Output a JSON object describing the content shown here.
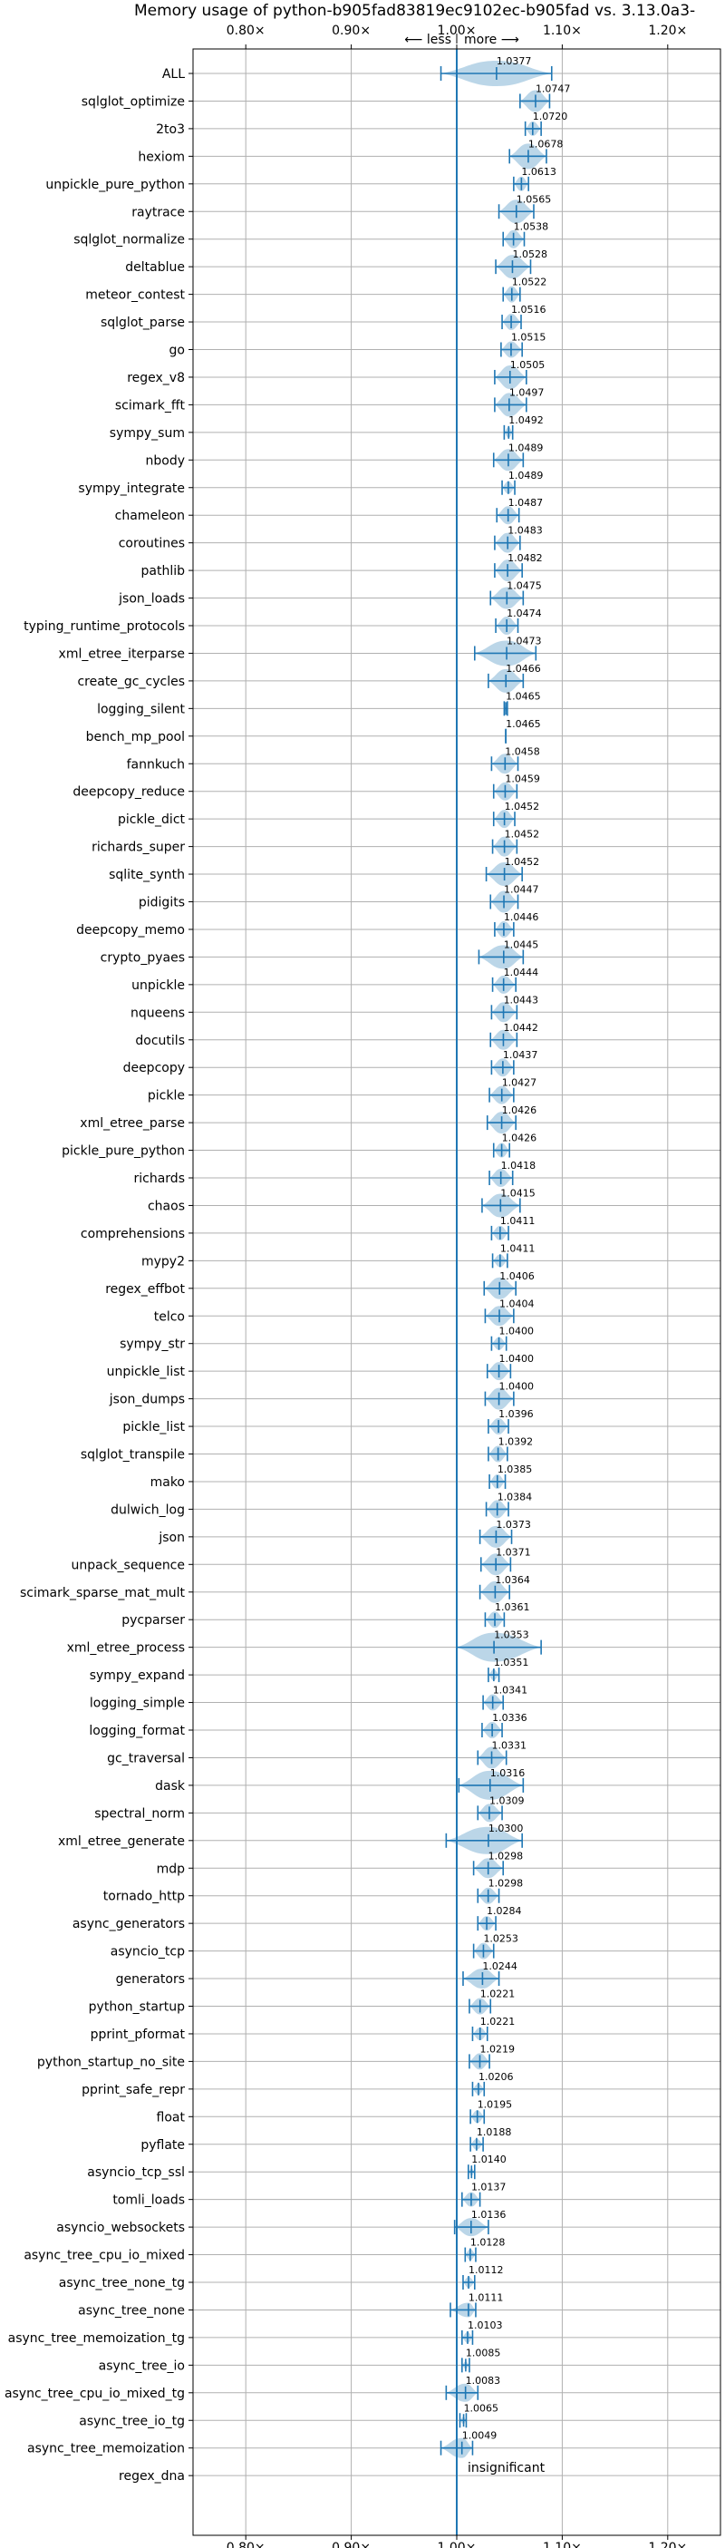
{
  "chart_data": {
    "type": "violin",
    "title": "Memory usage of python-b905fad83819ec9102ec-b905fad vs. 3.13.0a3-",
    "direction_labels": {
      "less": "⟵ less",
      "more": "more ⟶"
    },
    "xlim": [
      0.75,
      1.25
    ],
    "xticks": [
      0.8,
      0.9,
      1.0,
      1.1,
      1.2
    ],
    "xtick_labels": [
      "0.80×",
      "0.90×",
      "1.00×",
      "1.10×",
      "1.20×"
    ],
    "baseline": 1.0,
    "grid": true,
    "insignificant_label": "insignificant",
    "benchmarks": [
      {
        "name": "ALL",
        "label": "1.0377",
        "center": 1.0377,
        "min": 0.985,
        "max": 1.09,
        "halfwidth": 14
      },
      {
        "name": "sqlglot_optimize",
        "label": "1.0747",
        "center": 1.0747,
        "min": 1.06,
        "max": 1.088,
        "halfwidth": 12
      },
      {
        "name": "2to3",
        "label": "1.0720",
        "center": 1.072,
        "min": 1.065,
        "max": 1.08,
        "halfwidth": 8
      },
      {
        "name": "hexiom",
        "label": "1.0678",
        "center": 1.0678,
        "min": 1.05,
        "max": 1.085,
        "halfwidth": 14
      },
      {
        "name": "unpickle_pure_python",
        "label": "1.0613",
        "center": 1.0613,
        "min": 1.054,
        "max": 1.068,
        "halfwidth": 8
      },
      {
        "name": "raytrace",
        "label": "1.0565",
        "center": 1.0565,
        "min": 1.04,
        "max": 1.073,
        "halfwidth": 13
      },
      {
        "name": "sqlglot_normalize",
        "label": "1.0538",
        "center": 1.0538,
        "min": 1.044,
        "max": 1.064,
        "halfwidth": 10
      },
      {
        "name": "deltablue",
        "label": "1.0528",
        "center": 1.0528,
        "min": 1.037,
        "max": 1.07,
        "halfwidth": 13
      },
      {
        "name": "meteor_contest",
        "label": "1.0522",
        "center": 1.0522,
        "min": 1.044,
        "max": 1.06,
        "halfwidth": 9
      },
      {
        "name": "sqlglot_parse",
        "label": "1.0516",
        "center": 1.0516,
        "min": 1.043,
        "max": 1.061,
        "halfwidth": 9
      },
      {
        "name": "go",
        "label": "1.0515",
        "center": 1.0515,
        "min": 1.042,
        "max": 1.062,
        "halfwidth": 9
      },
      {
        "name": "regex_v8",
        "label": "1.0505",
        "center": 1.0505,
        "min": 1.036,
        "max": 1.066,
        "halfwidth": 13
      },
      {
        "name": "scimark_fft",
        "label": "1.0497",
        "center": 1.0497,
        "min": 1.036,
        "max": 1.066,
        "halfwidth": 13
      },
      {
        "name": "sympy_sum",
        "label": "1.0492",
        "center": 1.0492,
        "min": 1.045,
        "max": 1.053,
        "halfwidth": 6
      },
      {
        "name": "nbody",
        "label": "1.0489",
        "center": 1.0489,
        "min": 1.035,
        "max": 1.063,
        "halfwidth": 12
      },
      {
        "name": "sympy_integrate",
        "label": "1.0489",
        "center": 1.0489,
        "min": 1.043,
        "max": 1.055,
        "halfwidth": 7
      },
      {
        "name": "chameleon",
        "label": "1.0487",
        "center": 1.0487,
        "min": 1.038,
        "max": 1.059,
        "halfwidth": 10
      },
      {
        "name": "coroutines",
        "label": "1.0483",
        "center": 1.0483,
        "min": 1.036,
        "max": 1.06,
        "halfwidth": 11
      },
      {
        "name": "pathlib",
        "label": "1.0482",
        "center": 1.0482,
        "min": 1.036,
        "max": 1.062,
        "halfwidth": 12
      },
      {
        "name": "json_loads",
        "label": "1.0475",
        "center": 1.0475,
        "min": 1.032,
        "max": 1.063,
        "halfwidth": 12
      },
      {
        "name": "typing_runtime_protocols",
        "label": "1.0474",
        "center": 1.0474,
        "min": 1.037,
        "max": 1.058,
        "halfwidth": 10
      },
      {
        "name": "xml_etree_iterparse",
        "label": "1.0473",
        "center": 1.0473,
        "min": 1.017,
        "max": 1.075,
        "halfwidth": 14
      },
      {
        "name": "create_gc_cycles",
        "label": "1.0466",
        "center": 1.0466,
        "min": 1.03,
        "max": 1.063,
        "halfwidth": 13
      },
      {
        "name": "logging_silent",
        "label": "1.0465",
        "center": 1.0465,
        "min": 1.045,
        "max": 1.048,
        "halfwidth": 4
      },
      {
        "name": "bench_mp_pool",
        "label": "1.0465",
        "center": 1.0465,
        "min": 1.0465,
        "max": 1.0465,
        "halfwidth": 1
      },
      {
        "name": "fannkuch",
        "label": "1.0458",
        "center": 1.0458,
        "min": 1.033,
        "max": 1.058,
        "halfwidth": 11
      },
      {
        "name": "deepcopy_reduce",
        "label": "1.0459",
        "center": 1.0459,
        "min": 1.035,
        "max": 1.057,
        "halfwidth": 10
      },
      {
        "name": "pickle_dict",
        "label": "1.0452",
        "center": 1.0452,
        "min": 1.035,
        "max": 1.055,
        "halfwidth": 10
      },
      {
        "name": "richards_super",
        "label": "1.0452",
        "center": 1.0452,
        "min": 1.034,
        "max": 1.057,
        "halfwidth": 11
      },
      {
        "name": "sqlite_synth",
        "label": "1.0452",
        "center": 1.0452,
        "min": 1.028,
        "max": 1.062,
        "halfwidth": 13
      },
      {
        "name": "pidigits",
        "label": "1.0447",
        "center": 1.0447,
        "min": 1.032,
        "max": 1.058,
        "halfwidth": 12
      },
      {
        "name": "deepcopy_memo",
        "label": "1.0446",
        "center": 1.0446,
        "min": 1.036,
        "max": 1.054,
        "halfwidth": 9
      },
      {
        "name": "crypto_pyaes",
        "label": "1.0445",
        "center": 1.0445,
        "min": 1.021,
        "max": 1.063,
        "halfwidth": 13
      },
      {
        "name": "unpickle",
        "label": "1.0444",
        "center": 1.0444,
        "min": 1.034,
        "max": 1.056,
        "halfwidth": 10
      },
      {
        "name": "nqueens",
        "label": "1.0443",
        "center": 1.0443,
        "min": 1.033,
        "max": 1.057,
        "halfwidth": 11
      },
      {
        "name": "docutils",
        "label": "1.0442",
        "center": 1.0442,
        "min": 1.032,
        "max": 1.057,
        "halfwidth": 11
      },
      {
        "name": "deepcopy",
        "label": "1.0437",
        "center": 1.0437,
        "min": 1.033,
        "max": 1.054,
        "halfwidth": 10
      },
      {
        "name": "pickle",
        "label": "1.0427",
        "center": 1.0427,
        "min": 1.031,
        "max": 1.054,
        "halfwidth": 10
      },
      {
        "name": "xml_etree_parse",
        "label": "1.0426",
        "center": 1.0426,
        "min": 1.029,
        "max": 1.056,
        "halfwidth": 12
      },
      {
        "name": "pickle_pure_python",
        "label": "1.0426",
        "center": 1.0426,
        "min": 1.035,
        "max": 1.05,
        "halfwidth": 8
      },
      {
        "name": "richards",
        "label": "1.0418",
        "center": 1.0418,
        "min": 1.031,
        "max": 1.053,
        "halfwidth": 10
      },
      {
        "name": "chaos",
        "label": "1.0415",
        "center": 1.0415,
        "min": 1.024,
        "max": 1.06,
        "halfwidth": 13
      },
      {
        "name": "comprehensions",
        "label": "1.0411",
        "center": 1.0411,
        "min": 1.033,
        "max": 1.049,
        "halfwidth": 8
      },
      {
        "name": "mypy2",
        "label": "1.0411",
        "center": 1.0411,
        "min": 1.034,
        "max": 1.048,
        "halfwidth": 7
      },
      {
        "name": "regex_effbot",
        "label": "1.0406",
        "center": 1.0406,
        "min": 1.026,
        "max": 1.056,
        "halfwidth": 12
      },
      {
        "name": "telco",
        "label": "1.0404",
        "center": 1.0404,
        "min": 1.027,
        "max": 1.054,
        "halfwidth": 11
      },
      {
        "name": "sympy_str",
        "label": "1.0400",
        "center": 1.04,
        "min": 1.033,
        "max": 1.047,
        "halfwidth": 7
      },
      {
        "name": "unpickle_list",
        "label": "1.0400",
        "center": 1.04,
        "min": 1.029,
        "max": 1.051,
        "halfwidth": 10
      },
      {
        "name": "json_dumps",
        "label": "1.0400",
        "center": 1.04,
        "min": 1.027,
        "max": 1.054,
        "halfwidth": 12
      },
      {
        "name": "pickle_list",
        "label": "1.0396",
        "center": 1.0396,
        "min": 1.03,
        "max": 1.049,
        "halfwidth": 9
      },
      {
        "name": "sqlglot_transpile",
        "label": "1.0392",
        "center": 1.0392,
        "min": 1.03,
        "max": 1.048,
        "halfwidth": 9
      },
      {
        "name": "mako",
        "label": "1.0385",
        "center": 1.0385,
        "min": 1.031,
        "max": 1.046,
        "halfwidth": 8
      },
      {
        "name": "dulwich_log",
        "label": "1.0384",
        "center": 1.0384,
        "min": 1.028,
        "max": 1.049,
        "halfwidth": 10
      },
      {
        "name": "json",
        "label": "1.0373",
        "center": 1.0373,
        "min": 1.022,
        "max": 1.052,
        "halfwidth": 12
      },
      {
        "name": "unpack_sequence",
        "label": "1.0371",
        "center": 1.0371,
        "min": 1.023,
        "max": 1.051,
        "halfwidth": 12
      },
      {
        "name": "scimark_sparse_mat_mult",
        "label": "1.0364",
        "center": 1.0364,
        "min": 1.022,
        "max": 1.05,
        "halfwidth": 12
      },
      {
        "name": "pycparser",
        "label": "1.0361",
        "center": 1.0361,
        "min": 1.027,
        "max": 1.045,
        "halfwidth": 9
      },
      {
        "name": "xml_etree_process",
        "label": "1.0353",
        "center": 1.0353,
        "min": 1.0,
        "max": 1.08,
        "halfwidth": 16
      },
      {
        "name": "sympy_expand",
        "label": "1.0351",
        "center": 1.0351,
        "min": 1.03,
        "max": 1.04,
        "halfwidth": 6
      },
      {
        "name": "logging_simple",
        "label": "1.0341",
        "center": 1.0341,
        "min": 1.025,
        "max": 1.044,
        "halfwidth": 9
      },
      {
        "name": "logging_format",
        "label": "1.0336",
        "center": 1.0336,
        "min": 1.024,
        "max": 1.043,
        "halfwidth": 9
      },
      {
        "name": "gc_traversal",
        "label": "1.0331",
        "center": 1.0331,
        "min": 1.02,
        "max": 1.047,
        "halfwidth": 12
      },
      {
        "name": "dask",
        "label": "1.0316",
        "center": 1.0316,
        "min": 1.002,
        "max": 1.063,
        "halfwidth": 16
      },
      {
        "name": "spectral_norm",
        "label": "1.0309",
        "center": 1.0309,
        "min": 1.02,
        "max": 1.043,
        "halfwidth": 10
      },
      {
        "name": "xml_etree_generate",
        "label": "1.0300",
        "center": 1.03,
        "min": 0.99,
        "max": 1.062,
        "halfwidth": 15
      },
      {
        "name": "mdp",
        "label": "1.0298",
        "center": 1.0298,
        "min": 1.016,
        "max": 1.044,
        "halfwidth": 11
      },
      {
        "name": "tornado_http",
        "label": "1.0298",
        "center": 1.0298,
        "min": 1.02,
        "max": 1.04,
        "halfwidth": 9
      },
      {
        "name": "async_generators",
        "label": "1.0284",
        "center": 1.0284,
        "min": 1.02,
        "max": 1.037,
        "halfwidth": 8
      },
      {
        "name": "asyncio_tcp",
        "label": "1.0253",
        "center": 1.0253,
        "min": 1.016,
        "max": 1.035,
        "halfwidth": 9
      },
      {
        "name": "generators",
        "label": "1.0244",
        "center": 1.0244,
        "min": 1.006,
        "max": 1.04,
        "halfwidth": 11
      },
      {
        "name": "python_startup",
        "label": "1.0221",
        "center": 1.0221,
        "min": 1.012,
        "max": 1.032,
        "halfwidth": 9
      },
      {
        "name": "pprint_pformat",
        "label": "1.0221",
        "center": 1.0221,
        "min": 1.015,
        "max": 1.029,
        "halfwidth": 7
      },
      {
        "name": "python_startup_no_site",
        "label": "1.0219",
        "center": 1.0219,
        "min": 1.012,
        "max": 1.031,
        "halfwidth": 9
      },
      {
        "name": "pprint_safe_repr",
        "label": "1.0206",
        "center": 1.0206,
        "min": 1.015,
        "max": 1.026,
        "halfwidth": 6
      },
      {
        "name": "float",
        "label": "1.0195",
        "center": 1.0195,
        "min": 1.013,
        "max": 1.026,
        "halfwidth": 7
      },
      {
        "name": "pyflate",
        "label": "1.0188",
        "center": 1.0188,
        "min": 1.013,
        "max": 1.025,
        "halfwidth": 6
      },
      {
        "name": "asyncio_tcp_ssl",
        "label": "1.0140",
        "center": 1.014,
        "min": 1.011,
        "max": 1.017,
        "halfwidth": 4
      },
      {
        "name": "tomli_loads",
        "label": "1.0137",
        "center": 1.0137,
        "min": 1.005,
        "max": 1.022,
        "halfwidth": 8
      },
      {
        "name": "asyncio_websockets",
        "label": "1.0136",
        "center": 1.0136,
        "min": 0.998,
        "max": 1.03,
        "halfwidth": 10
      },
      {
        "name": "async_tree_cpu_io_mixed",
        "label": "1.0128",
        "center": 1.0128,
        "min": 1.008,
        "max": 1.018,
        "halfwidth": 6
      },
      {
        "name": "async_tree_none_tg",
        "label": "1.0112",
        "center": 1.0112,
        "min": 1.006,
        "max": 1.017,
        "halfwidth": 6
      },
      {
        "name": "async_tree_none",
        "label": "1.0111",
        "center": 1.0111,
        "min": 0.994,
        "max": 1.018,
        "halfwidth": 8
      },
      {
        "name": "async_tree_memoization_tg",
        "label": "1.0103",
        "center": 1.0103,
        "min": 1.005,
        "max": 1.015,
        "halfwidth": 6
      },
      {
        "name": "async_tree_io",
        "label": "1.0085",
        "center": 1.0085,
        "min": 1.005,
        "max": 1.012,
        "halfwidth": 4
      },
      {
        "name": "async_tree_cpu_io_mixed_tg",
        "label": "1.0083",
        "center": 1.0083,
        "min": 0.99,
        "max": 1.02,
        "halfwidth": 10
      },
      {
        "name": "async_tree_io_tg",
        "label": "1.0065",
        "center": 1.0065,
        "min": 1.003,
        "max": 1.009,
        "halfwidth": 4
      },
      {
        "name": "async_tree_memoization",
        "label": "1.0049",
        "center": 1.0049,
        "min": 0.985,
        "max": 1.015,
        "halfwidth": 11
      },
      {
        "name": "regex_dna",
        "label": "",
        "center": null,
        "min": null,
        "max": null,
        "halfwidth": 0,
        "insignificant": true
      }
    ]
  }
}
